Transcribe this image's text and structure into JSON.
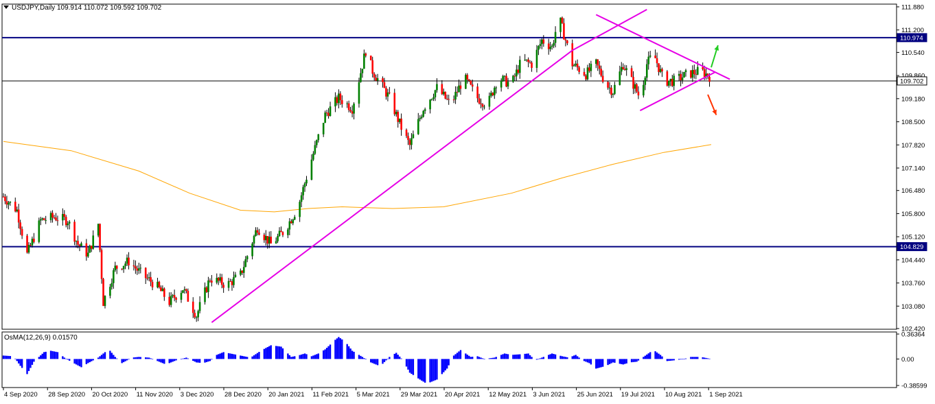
{
  "header": {
    "symbol": "USDJPY,Daily",
    "open": "109.914",
    "high": "110.072",
    "low": "109.592",
    "close": "109.702"
  },
  "colors": {
    "bull": "#008000",
    "bear": "#ff0000",
    "wick": "#000000",
    "ma": "#ffa500",
    "trendline": "#e600e6",
    "hline": "#000080",
    "histogram": "#0000ff",
    "arrow_up": "#22cc22",
    "arrow_down": "#ff3300",
    "price_tag_bg": "#000080"
  },
  "chart_data": [
    {
      "type": "candlestick",
      "title": "USDJPY,Daily",
      "ylim": [
        102.42,
        111.88
      ],
      "y_ticks": [
        "111.880",
        "111.200",
        "110.540",
        "109.860",
        "109.180",
        "108.500",
        "107.820",
        "107.140",
        "106.480",
        "105.800",
        "105.120",
        "104.440",
        "103.760",
        "103.080",
        "102.420"
      ],
      "x_ticks": [
        "4 Sep 2020",
        "28 Sep 2020",
        "20 Oct 2020",
        "11 Nov 2020",
        "3 Dec 2020",
        "28 Dec 2020",
        "20 Jan 2021",
        "11 Feb 2021",
        "5 Mar 2021",
        "29 Mar 2021",
        "20 Apr 2021",
        "12 May 2021",
        "3 Jun 2021",
        "25 Jun 2021",
        "19 Jul 2021",
        "10 Aug 2021",
        "1 Sep 2021"
      ],
      "price_tags": [
        {
          "label": "110.974",
          "value": 110.974
        },
        {
          "label": "109.702",
          "value": 109.702
        },
        {
          "label": "104.829",
          "value": 104.829
        }
      ],
      "horizontal_lines": [
        110.974,
        104.829
      ],
      "last_price": 109.702,
      "anchors": [
        [
          0,
          106.3
        ],
        [
          8,
          105.9
        ],
        [
          14,
          104.6
        ],
        [
          22,
          105.6
        ],
        [
          30,
          105.7
        ],
        [
          38,
          105.6
        ],
        [
          44,
          104.9
        ],
        [
          50,
          104.6
        ],
        [
          56,
          105.5
        ],
        [
          59,
          103.2
        ],
        [
          66,
          104.2
        ],
        [
          74,
          104.4
        ],
        [
          82,
          104.0
        ],
        [
          90,
          103.7
        ],
        [
          98,
          103.2
        ],
        [
          106,
          103.6
        ],
        [
          114,
          102.8
        ],
        [
          122,
          103.9
        ],
        [
          132,
          103.7
        ],
        [
          140,
          104.0
        ],
        [
          150,
          105.4
        ],
        [
          158,
          104.9
        ],
        [
          166,
          105.3
        ],
        [
          174,
          106.0
        ],
        [
          182,
          107.4
        ],
        [
          190,
          108.7
        ],
        [
          198,
          109.2
        ],
        [
          206,
          108.9
        ],
        [
          214,
          110.6
        ],
        [
          218,
          110.0
        ],
        [
          228,
          109.2
        ],
        [
          236,
          108.2
        ],
        [
          240,
          107.8
        ],
        [
          248,
          108.9
        ],
        [
          256,
          109.5
        ],
        [
          264,
          109.0
        ],
        [
          272,
          109.8
        ],
        [
          280,
          109.2
        ],
        [
          286,
          109.0
        ],
        [
          292,
          109.8
        ],
        [
          300,
          109.6
        ],
        [
          306,
          110.3
        ],
        [
          312,
          110.2
        ],
        [
          318,
          110.9
        ],
        [
          324,
          110.7
        ],
        [
          328,
          111.6
        ],
        [
          336,
          110.2
        ],
        [
          344,
          109.9
        ],
        [
          350,
          110.2
        ],
        [
          356,
          109.6
        ],
        [
          360,
          109.4
        ],
        [
          366,
          110.2
        ],
        [
          372,
          109.6
        ],
        [
          376,
          109.2
        ],
        [
          380,
          110.2
        ],
        [
          384,
          110.5
        ],
        [
          390,
          109.7
        ],
        [
          396,
          109.7
        ],
        [
          404,
          109.9
        ],
        [
          412,
          110.0
        ],
        [
          418,
          109.8
        ]
      ],
      "moving_average": [
        [
          0,
          107.92
        ],
        [
          40,
          107.65
        ],
        [
          80,
          107.05
        ],
        [
          110,
          106.4
        ],
        [
          140,
          105.9
        ],
        [
          160,
          105.85
        ],
        [
          180,
          105.95
        ],
        [
          200,
          106.0
        ],
        [
          230,
          105.95
        ],
        [
          260,
          106.0
        ],
        [
          300,
          106.4
        ],
        [
          330,
          106.85
        ],
        [
          360,
          107.25
        ],
        [
          390,
          107.6
        ],
        [
          418,
          107.83
        ]
      ],
      "trendlines": [
        {
          "from": [
            123,
            102.6
          ],
          "to": [
            336,
            110.6
          ]
        },
        {
          "from": [
            336,
            110.6
          ],
          "to": [
            380,
            111.8
          ]
        },
        {
          "from": [
            350,
            111.65
          ],
          "to": [
            429,
            109.75
          ]
        },
        {
          "from": [
            376,
            108.83
          ],
          "to": [
            420,
            109.95
          ]
        }
      ],
      "arrows": [
        {
          "direction": "up",
          "from": [
            418,
            110.1
          ],
          "to": [
            422,
            110.75
          ]
        },
        {
          "direction": "down",
          "from": [
            416,
            109.3
          ],
          "to": [
            421,
            108.7
          ]
        }
      ]
    },
    {
      "type": "bar",
      "title": "OsMA(12,26,9) 0.01570",
      "ylim": [
        -0.38599,
        0.36364
      ],
      "y_ticks": [
        "0.36364",
        "0.00",
        "-0.38599"
      ],
      "anchors": [
        [
          0,
          0.05
        ],
        [
          6,
          0.04
        ],
        [
          10,
          -0.1
        ],
        [
          14,
          -0.22
        ],
        [
          18,
          -0.04
        ],
        [
          24,
          0.1
        ],
        [
          28,
          0.12
        ],
        [
          32,
          0.1
        ],
        [
          36,
          0.02
        ],
        [
          40,
          -0.04
        ],
        [
          46,
          -0.12
        ],
        [
          50,
          -0.06
        ],
        [
          56,
          0.02
        ],
        [
          60,
          0.1
        ],
        [
          62,
          0.15
        ],
        [
          66,
          0.03
        ],
        [
          70,
          -0.06
        ],
        [
          76,
          0.02
        ],
        [
          80,
          0.03
        ],
        [
          86,
          0.02
        ],
        [
          90,
          -0.02
        ],
        [
          96,
          -0.08
        ],
        [
          102,
          -0.02
        ],
        [
          108,
          0.02
        ],
        [
          114,
          -0.05
        ],
        [
          118,
          -0.06
        ],
        [
          122,
          -0.03
        ],
        [
          126,
          0.06
        ],
        [
          130,
          0.1
        ],
        [
          136,
          0.07
        ],
        [
          140,
          0.05
        ],
        [
          146,
          0.02
        ],
        [
          152,
          0.12
        ],
        [
          158,
          0.2
        ],
        [
          164,
          0.18
        ],
        [
          170,
          0.03
        ],
        [
          174,
          0.05
        ],
        [
          178,
          0.08
        ],
        [
          182,
          0.04
        ],
        [
          186,
          0.08
        ],
        [
          190,
          0.14
        ],
        [
          196,
          0.28
        ],
        [
          198,
          0.32
        ],
        [
          202,
          0.25
        ],
        [
          206,
          0.12
        ],
        [
          212,
          0.03
        ],
        [
          216,
          -0.04
        ],
        [
          222,
          -0.1
        ],
        [
          224,
          -0.07
        ],
        [
          228,
          0.03
        ],
        [
          232,
          0.09
        ],
        [
          236,
          -0.02
        ],
        [
          240,
          -0.2
        ],
        [
          246,
          -0.3
        ],
        [
          250,
          -0.36
        ],
        [
          256,
          -0.3
        ],
        [
          262,
          -0.14
        ],
        [
          266,
          0.05
        ],
        [
          270,
          0.13
        ],
        [
          276,
          0.03
        ],
        [
          280,
          0.04
        ],
        [
          284,
          0.0
        ],
        [
          290,
          0.02
        ],
        [
          296,
          0.08
        ],
        [
          300,
          0.06
        ],
        [
          306,
          0.07
        ],
        [
          310,
          0.08
        ],
        [
          314,
          -0.02
        ],
        [
          320,
          0.04
        ],
        [
          324,
          0.08
        ],
        [
          330,
          0.04
        ],
        [
          334,
          0.02
        ],
        [
          338,
          0.06
        ],
        [
          342,
          -0.02
        ],
        [
          346,
          -0.06
        ],
        [
          350,
          -0.14
        ],
        [
          356,
          -0.1
        ],
        [
          360,
          -0.05
        ],
        [
          366,
          -0.08
        ],
        [
          370,
          -0.05
        ],
        [
          374,
          -0.04
        ],
        [
          378,
          0.03
        ],
        [
          382,
          0.1
        ],
        [
          384,
          0.13
        ],
        [
          388,
          0.06
        ],
        [
          392,
          -0.03
        ],
        [
          396,
          -0.02
        ],
        [
          402,
          0.0
        ],
        [
          406,
          0.03
        ],
        [
          412,
          0.03
        ],
        [
          418,
          0.0
        ]
      ]
    }
  ]
}
